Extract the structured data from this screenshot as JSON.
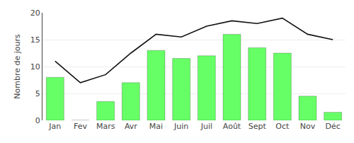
{
  "chart_data": {
    "type": "bar",
    "categories": [
      "Jan",
      "Fev",
      "Mars",
      "Avr",
      "Mai",
      "Juin",
      "Juil",
      "Août",
      "Sept",
      "Oct",
      "Nov",
      "Déc"
    ],
    "series": [
      {
        "type": "bar",
        "color": "#66ff66",
        "values": [
          8,
          0,
          3.5,
          7,
          13,
          11.5,
          12,
          16,
          13.5,
          12.5,
          4.5,
          1.5
        ]
      },
      {
        "type": "line",
        "color": "#111111",
        "values": [
          11,
          7,
          8.5,
          12.5,
          16,
          15.5,
          17.5,
          18.5,
          18,
          19,
          16,
          15
        ]
      }
    ],
    "ylabel": "Nombre de jours",
    "ylim": [
      0,
      20
    ],
    "yticks": [
      0,
      5,
      10,
      15,
      20
    ],
    "grid": true
  }
}
